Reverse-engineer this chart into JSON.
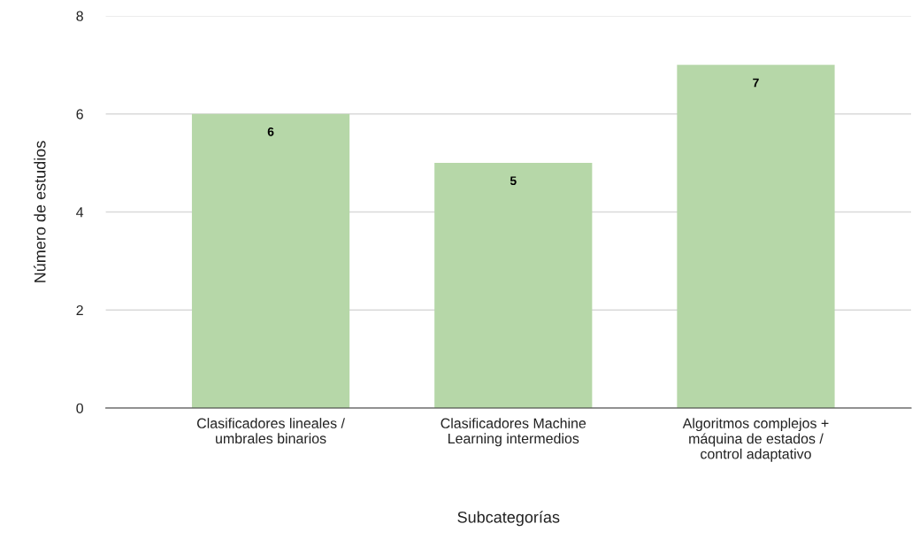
{
  "chart_data": {
    "type": "bar",
    "xlabel": "Subcategorías",
    "ylabel": "Número de estudios",
    "categories": [
      "Clasificadores lineales /\numbrales binarios",
      "Clasificadores Machine\nLearning intermedios",
      "Algoritmos complejos +\nmáquina de estados /\ncontrol adaptativo"
    ],
    "values": [
      6,
      5,
      7
    ],
    "color": "#b6d7a8",
    "ylim": [
      0,
      8
    ],
    "yticks": [
      0,
      2,
      4,
      6,
      8
    ],
    "grid": "y",
    "data_labels": true,
    "legend": false
  }
}
